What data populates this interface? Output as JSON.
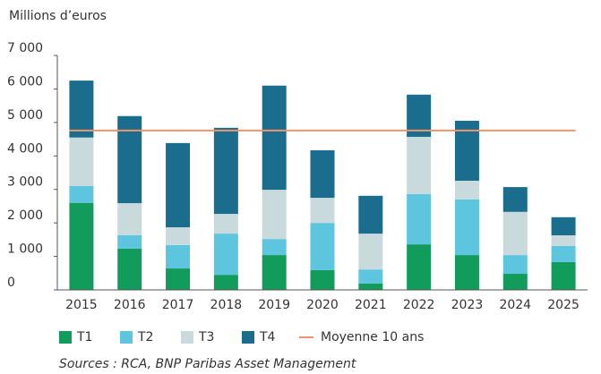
{
  "chart_data": {
    "type": "stacked_bar",
    "y_label": "Millions d’euros",
    "source": "Sources : RCA, BNP Paribas Asset Management",
    "categories": [
      "2015",
      "2016",
      "2017",
      "2018",
      "2019",
      "2020",
      "2021",
      "2022",
      "2023",
      "2024",
      "2025"
    ],
    "series": [
      {
        "name": "T1",
        "color": "#129c5c",
        "values": [
          2600,
          1230,
          640,
          450,
          1040,
          590,
          190,
          1360,
          1040,
          480,
          830
        ]
      },
      {
        "name": "T2",
        "color": "#5ec5df",
        "values": [
          500,
          400,
          700,
          1230,
          480,
          1410,
          420,
          1500,
          1660,
          560,
          480
        ]
      },
      {
        "name": "T3",
        "color": "#c9dadd",
        "values": [
          1450,
          960,
          530,
          590,
          1470,
          750,
          1070,
          1710,
          560,
          1290,
          320
        ]
      },
      {
        "name": "T4",
        "color": "#1b6d8e",
        "values": [
          1700,
          2600,
          2515,
          2570,
          3110,
          1420,
          1130,
          1260,
          1790,
          740,
          540
        ]
      }
    ],
    "reference_line": {
      "name": "Moyenne 10 ans",
      "value": 4760,
      "color": "#f2946a"
    },
    "ylim": [
      0,
      7000
    ],
    "yticks": [
      0,
      {
        "value": 1000,
        "label": "1 000"
      },
      {
        "value": 2000,
        "label": "2 000"
      },
      {
        "value": 3000,
        "label": "3 000"
      },
      {
        "value": 4000,
        "label": "4 000"
      },
      {
        "value": 5000,
        "label": "5 000"
      },
      {
        "value": 6000,
        "label": "6 000"
      },
      {
        "value": 7000,
        "label": "7 000"
      }
    ],
    "grid": false
  }
}
